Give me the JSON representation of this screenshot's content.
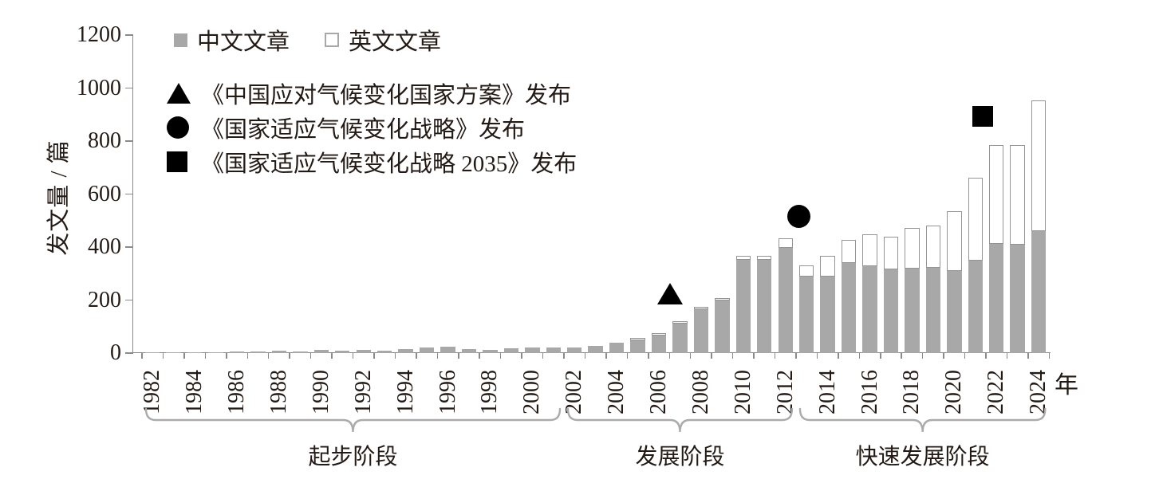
{
  "axes": {
    "y_title": "发文量 / 篇",
    "x_unit": "年"
  },
  "chart_data": {
    "type": "bar",
    "stacked": true,
    "xlabel": "年",
    "ylabel": "发文量 / 篇",
    "ylim": [
      0,
      1200
    ],
    "yticks": [
      0,
      200,
      400,
      600,
      800,
      1000,
      1200
    ],
    "x_tick_labels": [
      "1982",
      "1984",
      "1986",
      "1988",
      "1990",
      "1992",
      "1994",
      "1996",
      "1998",
      "2000",
      "2002",
      "2004",
      "2006",
      "2008",
      "2010",
      "2012",
      "2014",
      "2016",
      "2018",
      "2020",
      "2022",
      "2024"
    ],
    "categories": [
      1982,
      1983,
      1984,
      1985,
      1986,
      1987,
      1988,
      1989,
      1990,
      1991,
      1992,
      1993,
      1994,
      1995,
      1996,
      1997,
      1998,
      1999,
      2000,
      2001,
      2002,
      2003,
      2004,
      2005,
      2006,
      2007,
      2008,
      2009,
      2010,
      2011,
      2012,
      2013,
      2014,
      2015,
      2016,
      2017,
      2018,
      2019,
      2020,
      2021,
      2022,
      2023,
      2024
    ],
    "series": [
      {
        "name": "中文文章",
        "color": "#a8a8a8",
        "values": [
          2,
          2,
          3,
          2,
          6,
          5,
          8,
          6,
          11,
          8,
          13,
          8,
          16,
          22,
          23,
          15,
          13,
          17,
          20,
          22,
          20,
          26,
          38,
          49,
          65,
          110,
          165,
          198,
          353,
          352,
          397,
          290,
          290,
          340,
          327,
          316,
          320,
          322,
          310,
          348,
          413,
          409,
          460
        ]
      },
      {
        "name": "英文文章",
        "color": "#ffffff",
        "border_color": "#949494",
        "values": [
          0,
          0,
          0,
          0,
          0,
          0,
          0,
          0,
          0,
          0,
          0,
          0,
          0,
          0,
          0,
          0,
          0,
          0,
          0,
          0,
          0,
          0,
          0,
          2,
          3,
          5,
          8,
          8,
          14,
          16,
          35,
          40,
          77,
          88,
          120,
          124,
          152,
          160,
          225,
          315,
          372,
          376,
          493
        ]
      }
    ],
    "event_markers": [
      {
        "shape": "triangle",
        "year": 2007,
        "value": 225,
        "label": "《中国应对气候变化国家方案》发布"
      },
      {
        "shape": "circle",
        "year": 2013,
        "value": 515,
        "label": "《国家适应气候变化战略》发布"
      },
      {
        "shape": "square",
        "year": 2022,
        "value": 893,
        "label": "《国家适应气候变化战略 2035》发布"
      }
    ],
    "stages": [
      {
        "label": "起步阶段",
        "from_year": 1982,
        "to_year": 2001
      },
      {
        "label": "发展阶段",
        "from_year": 2002,
        "to_year": 2012
      },
      {
        "label": "快速发展阶段",
        "from_year": 2013,
        "to_year": 2024
      }
    ],
    "legend_position": "top-left",
    "grid": false
  }
}
